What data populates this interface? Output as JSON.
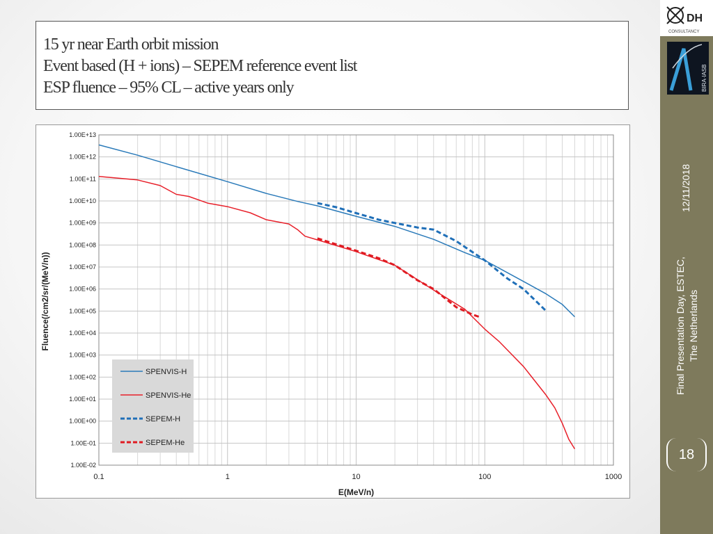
{
  "slide": {
    "title_lines": [
      "15 yr  near  Earth orbit mission",
      "Event based (H + ions) – SEPEM reference event list",
      "ESP fluence – 95% CL – active years only"
    ],
    "date": "12/11/2018",
    "footer_lines": [
      "Final Presentation Day, ESTEC,",
      "The Netherlands"
    ],
    "page_number": "18",
    "logo_dh_text": "DH",
    "logo_dh_subtext": "CONSULTANCY",
    "logo_bira_text": "BIRA·IASB"
  },
  "chart_data": {
    "type": "line",
    "xlabel": "E(MeV/n)",
    "ylabel": "Fluence(/cm2/sr/(MeV/n))",
    "xscale": "log",
    "yscale": "log",
    "xlim": [
      0.1,
      1000
    ],
    "ylim": [
      0.01,
      10000000000000.0
    ],
    "x_ticks": [
      "0.1",
      "1",
      "10",
      "100",
      "1000"
    ],
    "y_ticks": [
      "1.00E-02",
      "1.00E-01",
      "1.00E+00",
      "1.00E+01",
      "1.00E+02",
      "1.00E+03",
      "1.00E+04",
      "1.00E+05",
      "1.00E+06",
      "1.00E+07",
      "1.00E+08",
      "1.00E+09",
      "1.00E+10",
      "1.00E+11",
      "1.00E+12",
      "1.00E+13"
    ],
    "grid": true,
    "legend_position": "bottom-left",
    "series": [
      {
        "name": "SPENVIS-H",
        "color": "#2a7ab9",
        "style": "solid",
        "points": [
          [
            0.1,
            3500000000000.0
          ],
          [
            0.2,
            1200000000000.0
          ],
          [
            0.4,
            360000000000.0
          ],
          [
            1,
            75000000000.0
          ],
          [
            2,
            22000000000.0
          ],
          [
            3.5,
            9500000000.0
          ],
          [
            5,
            6000000000.0
          ],
          [
            10,
            2000000000.0
          ],
          [
            20,
            700000000.0
          ],
          [
            40,
            180000000.0
          ],
          [
            70,
            45000000.0
          ],
          [
            100,
            20000000.0
          ],
          [
            200,
            2200000.0
          ],
          [
            300,
            600000.0
          ],
          [
            400,
            200000.0
          ],
          [
            500,
            55000.0
          ]
        ]
      },
      {
        "name": "SPENVIS-He",
        "color": "#e8202a",
        "style": "solid",
        "points": [
          [
            0.1,
            130000000000.0
          ],
          [
            0.2,
            90000000000.0
          ],
          [
            0.3,
            50000000000.0
          ],
          [
            0.4,
            20000000000.0
          ],
          [
            0.5,
            16000000000.0
          ],
          [
            0.7,
            8000000000.0
          ],
          [
            1,
            5500000000.0
          ],
          [
            1.5,
            2900000000.0
          ],
          [
            2,
            1400000000.0
          ],
          [
            3,
            900000000.0
          ],
          [
            3.5,
            500000000.0
          ],
          [
            4,
            250000000.0
          ],
          [
            5,
            170000000.0
          ],
          [
            10,
            50000000.0
          ],
          [
            20,
            12000000.0
          ],
          [
            40,
            900000.0
          ],
          [
            70,
            120000.0
          ],
          [
            100,
            15000.0
          ],
          [
            130,
            4000.0
          ],
          [
            200,
            300
          ],
          [
            300,
            15
          ],
          [
            350,
            4
          ],
          [
            400,
            0.8
          ],
          [
            450,
            0.15
          ],
          [
            500,
            0.055
          ]
        ]
      },
      {
        "name": "SEPEM-H",
        "color": "#1f6fb8",
        "style": "dashed",
        "points": [
          [
            5,
            8000000000.0
          ],
          [
            7,
            5200000000.0
          ],
          [
            10,
            2800000000.0
          ],
          [
            15,
            1400000000.0
          ],
          [
            20,
            1000000000.0
          ],
          [
            30,
            620000000.0
          ],
          [
            40,
            500000000.0
          ],
          [
            60,
            150000000.0
          ],
          [
            100,
            20000000.0
          ],
          [
            150,
            3000000.0
          ],
          [
            200,
            1000000.0
          ],
          [
            300,
            100000.0
          ]
        ]
      },
      {
        "name": "SEPEM-He",
        "color": "#e01b22",
        "style": "dashed",
        "points": [
          [
            5,
            200000000.0
          ],
          [
            10,
            55000000.0
          ],
          [
            15,
            25000000.0
          ],
          [
            20,
            12000000.0
          ],
          [
            30,
            2500000.0
          ],
          [
            40,
            1000000.0
          ],
          [
            60,
            150000.0
          ],
          [
            80,
            70000.0
          ],
          [
            90,
            55000.0
          ]
        ]
      }
    ]
  }
}
